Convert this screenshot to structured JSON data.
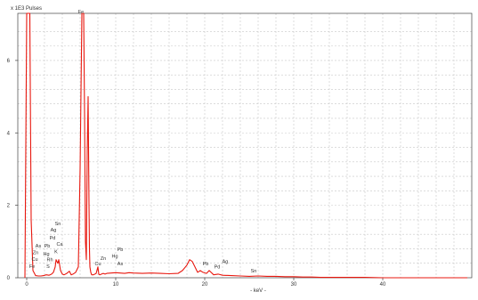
{
  "chart_data": {
    "type": "line",
    "title": "",
    "xlabel": "- keV -",
    "ylabel": "x 1E3 Pulses",
    "xlim": [
      -1,
      50
    ],
    "ylim": [
      0,
      7.3
    ],
    "x_ticks": [
      0,
      10,
      20,
      30,
      40
    ],
    "y_ticks": [
      0,
      2,
      4,
      6
    ],
    "grid": true,
    "colors": {
      "series": "#e8180f",
      "grid": "#c8c8c8",
      "axis": "#444444",
      "text": "#333333"
    },
    "series": [
      {
        "values_note": "",
        "x": [
          -0.2,
          0,
          0.1,
          0.2,
          0.35,
          0.5,
          0.7,
          1,
          1.3,
          1.6,
          1.9,
          2.2,
          2.5,
          2.8,
          3.0,
          3.2,
          3.3,
          3.5,
          3.6,
          3.7,
          3.8,
          4.0,
          4.2,
          4.5,
          4.8,
          5.0,
          5.2,
          5.5,
          5.8,
          6.0,
          6.2,
          6.3,
          6.4,
          6.5,
          6.6,
          6.7,
          6.8,
          6.9,
          7.0,
          7.05,
          7.1,
          7.2,
          7.3,
          7.5,
          7.8,
          8.0,
          8.05,
          8.1,
          8.2,
          8.4,
          8.6,
          8.8,
          9.0,
          9.5,
          10.0,
          10.5,
          11.0,
          11.5,
          12.0,
          13.0,
          14.0,
          15.0,
          16.0,
          17.0,
          17.5,
          18.0,
          18.3,
          18.6,
          18.9,
          19.2,
          19.5,
          19.8,
          20.2,
          20.5,
          21.0,
          21.5,
          22.0,
          23.0,
          24.0,
          25.0,
          26.0,
          27.0,
          28.0,
          29.0,
          30.0,
          31.0,
          32.0,
          33.0,
          34.0,
          36.0,
          38.0,
          40.0,
          42.0,
          44.0,
          46.0,
          48.0,
          49.5
        ],
        "y": [
          0,
          7.3,
          7.3,
          7.3,
          7.3,
          1.6,
          0.2,
          0.06,
          0.05,
          0.05,
          0.06,
          0.08,
          0.07,
          0.1,
          0.15,
          0.3,
          0.5,
          0.4,
          0.5,
          0.35,
          0.2,
          0.1,
          0.08,
          0.12,
          0.18,
          0.08,
          0.1,
          0.15,
          0.3,
          3.0,
          7.3,
          7.3,
          7.3,
          4.5,
          1.0,
          0.5,
          3.5,
          5.0,
          2.0,
          0.8,
          0.3,
          0.15,
          0.08,
          0.08,
          0.12,
          0.3,
          0.2,
          0.1,
          0.08,
          0.1,
          0.12,
          0.1,
          0.12,
          0.13,
          0.14,
          0.13,
          0.12,
          0.14,
          0.13,
          0.12,
          0.13,
          0.12,
          0.11,
          0.12,
          0.2,
          0.35,
          0.5,
          0.45,
          0.3,
          0.15,
          0.2,
          0.15,
          0.12,
          0.2,
          0.08,
          0.1,
          0.07,
          0.06,
          0.05,
          0.04,
          0.05,
          0.04,
          0.04,
          0.03,
          0.03,
          0.02,
          0.02,
          0.01,
          0.01,
          0.01,
          0.01,
          0,
          0,
          0,
          0,
          0,
          0
        ]
      }
    ],
    "annotations": [
      {
        "text": "Fe",
        "x": 6.1,
        "y": 7.3
      },
      {
        "text": "Sn",
        "x": 3.5,
        "y": 1.45
      },
      {
        "text": "Ag",
        "x": 3.0,
        "y": 1.28
      },
      {
        "text": "Pd",
        "x": 2.9,
        "y": 1.06
      },
      {
        "text": "Ca",
        "x": 3.7,
        "y": 0.89
      },
      {
        "text": "As",
        "x": 1.3,
        "y": 0.83
      },
      {
        "text": "Pb",
        "x": 2.3,
        "y": 0.83
      },
      {
        "text": "K",
        "x": 3.3,
        "y": 0.68
      },
      {
        "text": "Zn",
        "x": 1.0,
        "y": 0.65
      },
      {
        "text": "Hg",
        "x": 2.2,
        "y": 0.62
      },
      {
        "text": "Cu",
        "x": 0.9,
        "y": 0.47
      },
      {
        "text": "Rh",
        "x": 2.6,
        "y": 0.45
      },
      {
        "text": "Fe",
        "x": 0.6,
        "y": 0.27
      },
      {
        "text": "S",
        "x": 2.4,
        "y": 0.27
      },
      {
        "text": "Pb",
        "x": 10.5,
        "y": 0.74
      },
      {
        "text": "Hg",
        "x": 9.9,
        "y": 0.55
      },
      {
        "text": "Zn",
        "x": 8.6,
        "y": 0.49
      },
      {
        "text": "Cu",
        "x": 8.0,
        "y": 0.35
      },
      {
        "text": "As",
        "x": 10.5,
        "y": 0.35
      },
      {
        "text": "Pb",
        "x": 20.1,
        "y": 0.35
      },
      {
        "text": "Pd",
        "x": 21.4,
        "y": 0.26
      },
      {
        "text": "Ag",
        "x": 22.3,
        "y": 0.41
      },
      {
        "text": "Sn",
        "x": 25.5,
        "y": 0.15
      }
    ]
  }
}
